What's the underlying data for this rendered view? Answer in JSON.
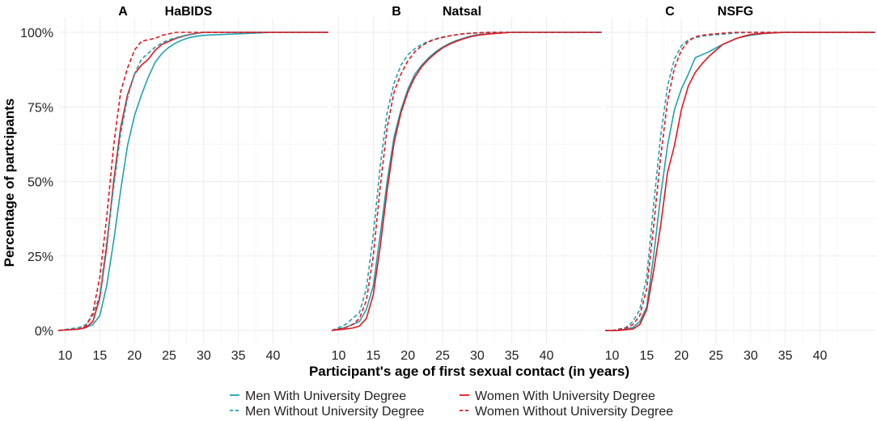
{
  "figure": {
    "ylabel": "Percentage of partcipants",
    "xlabel": "Participant's age of first sexual contact (in years)",
    "legend": [
      {
        "label": "Men With University Degree",
        "color": "#1ba3b0",
        "dash": "solid"
      },
      {
        "label": "Women With University Degree",
        "color": "#e8141e",
        "dash": "solid"
      },
      {
        "label": "Men Without University Degree",
        "color": "#1ba3b0",
        "dash": "dashed"
      },
      {
        "label": "Women Without University Degree",
        "color": "#e8141e",
        "dash": "dashed"
      }
    ]
  },
  "chart_data": [
    {
      "type": "line",
      "panel_letter": "A",
      "title": "HaBIDS",
      "xlim": [
        9,
        48
      ],
      "ylim": [
        0,
        100
      ],
      "x_ticks": [
        10,
        15,
        20,
        25,
        30,
        35,
        40
      ],
      "y_ticks": [
        0,
        25,
        50,
        75,
        100
      ],
      "y_tick_labels": [
        "0%",
        "25%",
        "50%",
        "75%",
        "100%"
      ],
      "series": [
        {
          "name": "Men With University Degree",
          "color": "#1ba3b0",
          "dash": "solid",
          "x": [
            9,
            12,
            13,
            14,
            15,
            16,
            17,
            18,
            19,
            20,
            21,
            22,
            23,
            24,
            25,
            26,
            27,
            28,
            29,
            30,
            35,
            40,
            45,
            48
          ],
          "y": [
            0,
            0.5,
            1,
            2,
            5,
            15,
            30,
            47,
            62,
            72,
            79,
            85,
            90,
            93,
            95,
            96.5,
            97.5,
            98.3,
            98.7,
            99,
            99.5,
            100,
            100,
            100
          ]
        },
        {
          "name": "Women With University Degree",
          "color": "#e8141e",
          "dash": "solid",
          "x": [
            9,
            12,
            13,
            14,
            15,
            16,
            17,
            18,
            19,
            20,
            21,
            22,
            23,
            24,
            25,
            26,
            27,
            28,
            30,
            35,
            40,
            45,
            48
          ],
          "y": [
            0,
            0.5,
            1,
            3,
            11,
            28,
            50,
            68,
            79,
            86,
            89,
            91,
            94,
            96,
            97,
            98,
            98.7,
            99.3,
            100,
            100,
            100,
            100,
            100
          ]
        },
        {
          "name": "Men Without University Degree",
          "color": "#1ba3b0",
          "dash": "dashed",
          "x": [
            9,
            12,
            13,
            14,
            15,
            16,
            17,
            18,
            19,
            20,
            21,
            22,
            23,
            24,
            25,
            26,
            27,
            28,
            29,
            30,
            35,
            40,
            45,
            48
          ],
          "y": [
            0,
            1,
            2,
            5,
            12,
            30,
            48,
            66,
            78,
            86,
            91,
            93,
            95,
            96.5,
            97.5,
            98.2,
            98.8,
            99.2,
            99.6,
            100,
            100,
            100,
            100,
            100
          ]
        },
        {
          "name": "Women Without University Degree",
          "color": "#e8141e",
          "dash": "dashed",
          "x": [
            9,
            12,
            13,
            14,
            15,
            16,
            17,
            18,
            19,
            20,
            21,
            22,
            23,
            24,
            25,
            26,
            27,
            28,
            30,
            35,
            40,
            45,
            48
          ],
          "y": [
            0,
            0.5,
            1.5,
            6,
            18,
            38,
            62,
            80,
            88,
            94,
            97,
            97.5,
            98,
            99,
            99.5,
            100,
            100,
            100,
            100,
            100,
            100,
            100,
            100
          ]
        }
      ]
    },
    {
      "type": "line",
      "panel_letter": "B",
      "title": "Natsal",
      "xlim": [
        9,
        48
      ],
      "ylim": [
        0,
        100
      ],
      "x_ticks": [
        10,
        15,
        20,
        25,
        30,
        35,
        40
      ],
      "y_ticks": [
        0,
        25,
        50,
        75,
        100
      ],
      "y_tick_labels": [
        "0%",
        "25%",
        "50%",
        "75%",
        "100%"
      ],
      "series": [
        {
          "name": "Men With University Degree",
          "color": "#1ba3b0",
          "dash": "solid",
          "x": [
            9,
            10,
            11,
            12,
            13,
            14,
            15,
            16,
            17,
            18,
            19,
            20,
            21,
            22,
            23,
            24,
            25,
            26,
            27,
            28,
            29,
            30,
            32,
            35,
            40,
            45,
            48
          ],
          "y": [
            0,
            0.5,
            1,
            2,
            3,
            7,
            15,
            32,
            50,
            65,
            74,
            81,
            86,
            89,
            91.5,
            93.5,
            95,
            96.3,
            97.3,
            98,
            98.7,
            99.2,
            99.6,
            100,
            100,
            100,
            100
          ]
        },
        {
          "name": "Women With University Degree",
          "color": "#e8141e",
          "dash": "solid",
          "x": [
            9,
            10,
            11,
            12,
            13,
            14,
            15,
            16,
            17,
            18,
            19,
            20,
            21,
            22,
            23,
            24,
            25,
            26,
            27,
            28,
            29,
            30,
            32,
            35,
            40,
            45,
            48
          ],
          "y": [
            0,
            0.3,
            0.5,
            0.8,
            1.5,
            4,
            12,
            28,
            47,
            63,
            73,
            80,
            85,
            88.5,
            91,
            93,
            94.8,
            96,
            97,
            97.8,
            98.5,
            99,
            99.5,
            100,
            100,
            100,
            100
          ]
        },
        {
          "name": "Men Without University Degree",
          "color": "#1ba3b0",
          "dash": "dashed",
          "x": [
            9,
            10,
            11,
            12,
            13,
            14,
            15,
            16,
            17,
            18,
            19,
            20,
            21,
            22,
            23,
            24,
            25,
            26,
            27,
            28,
            30,
            32,
            35,
            40,
            45,
            48
          ],
          "y": [
            0,
            1,
            2,
            4,
            6,
            14,
            32,
            55,
            73,
            83,
            89,
            92.5,
            94.5,
            96,
            97,
            97.8,
            98.4,
            98.8,
            99.2,
            99.5,
            99.8,
            100,
            100,
            100,
            100,
            100
          ]
        },
        {
          "name": "Women Without University Degree",
          "color": "#e8141e",
          "dash": "dashed",
          "x": [
            9,
            10,
            11,
            12,
            13,
            14,
            15,
            16,
            17,
            18,
            19,
            20,
            21,
            22,
            23,
            24,
            25,
            26,
            27,
            28,
            30,
            32,
            35,
            40,
            45,
            48
          ],
          "y": [
            0,
            0.5,
            1,
            2,
            4,
            10,
            25,
            48,
            68,
            80,
            86,
            90.5,
            93.5,
            95.5,
            96.8,
            97.7,
            98.3,
            98.8,
            99.2,
            99.5,
            99.8,
            100,
            100,
            100,
            100,
            100
          ]
        }
      ]
    },
    {
      "type": "line",
      "panel_letter": "C",
      "title": "NSFG",
      "xlim": [
        9,
        48
      ],
      "ylim": [
        0,
        100
      ],
      "x_ticks": [
        10,
        15,
        20,
        25,
        30,
        35,
        40
      ],
      "y_ticks": [
        0,
        25,
        50,
        75,
        100
      ],
      "y_tick_labels": [
        "0%",
        "25%",
        "50%",
        "75%",
        "100%"
      ],
      "series": [
        {
          "name": "Men With University Degree",
          "color": "#1ba3b0",
          "dash": "solid",
          "x": [
            9,
            10,
            11,
            12,
            13,
            14,
            15,
            16,
            17,
            18,
            19,
            20,
            21,
            22,
            23,
            24,
            25,
            26,
            27,
            28,
            29,
            30,
            32,
            35,
            40,
            45,
            48
          ],
          "y": [
            0,
            0,
            0,
            0.5,
            1,
            3,
            8,
            25,
            45,
            62,
            74,
            81,
            86,
            91.5,
            92.5,
            93.5,
            94.8,
            96,
            97,
            98,
            98.5,
            99,
            99.6,
            100,
            100,
            100,
            100
          ]
        },
        {
          "name": "Women With University Degree",
          "color": "#e8141e",
          "dash": "solid",
          "x": [
            9,
            10,
            11,
            12,
            13,
            14,
            15,
            16,
            17,
            18,
            19,
            20,
            21,
            22,
            23,
            24,
            25,
            26,
            27,
            28,
            29,
            30,
            32,
            35,
            40,
            45,
            48
          ],
          "y": [
            0,
            0,
            0,
            0.3,
            0.5,
            2,
            7,
            20,
            35,
            53,
            62,
            74,
            82,
            86.5,
            89.5,
            92,
            94,
            96,
            97,
            98,
            98.7,
            99.3,
            99.7,
            100,
            100,
            100,
            100
          ]
        },
        {
          "name": "Men Without University Degree",
          "color": "#1ba3b0",
          "dash": "dashed",
          "x": [
            9,
            10,
            11,
            12,
            13,
            14,
            15,
            16,
            17,
            18,
            19,
            20,
            21,
            22,
            23,
            24,
            25,
            26,
            27,
            28,
            30,
            32,
            35,
            40,
            45,
            48
          ],
          "y": [
            0,
            0,
            0.5,
            1,
            3,
            7,
            18,
            42,
            65,
            82,
            91,
            95.5,
            97.5,
            98.2,
            98.7,
            99,
            99.2,
            99.4,
            99.6,
            99.8,
            100,
            100,
            100,
            100,
            100,
            100
          ]
        },
        {
          "name": "Women Without University Degree",
          "color": "#e8141e",
          "dash": "dashed",
          "x": [
            9,
            10,
            11,
            12,
            13,
            14,
            15,
            16,
            17,
            18,
            19,
            20,
            21,
            22,
            23,
            24,
            25,
            26,
            27,
            28,
            30,
            32,
            35,
            40,
            45,
            48
          ],
          "y": [
            0,
            0,
            0.3,
            0.8,
            2,
            5,
            14,
            35,
            58,
            77,
            88,
            94,
            97,
            98.5,
            99,
            99.3,
            99.5,
            99.7,
            99.9,
            100,
            100,
            100,
            100,
            100,
            100,
            100
          ]
        }
      ]
    }
  ]
}
